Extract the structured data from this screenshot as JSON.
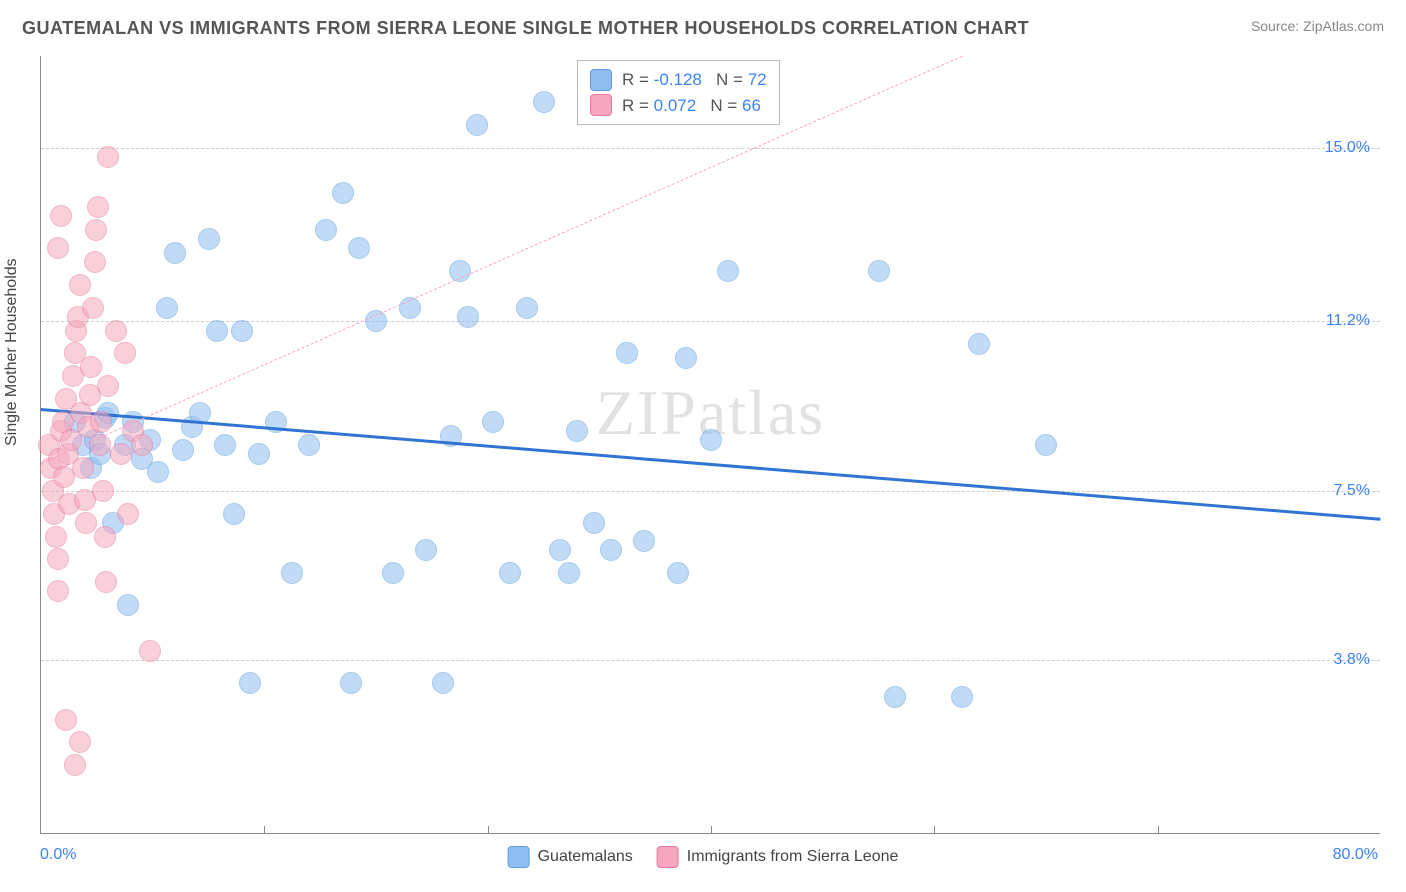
{
  "title": "GUATEMALAN VS IMMIGRANTS FROM SIERRA LEONE SINGLE MOTHER HOUSEHOLDS CORRELATION CHART",
  "source": "Source: ZipAtlas.com",
  "watermark": "ZIPatlas",
  "chart": {
    "type": "scatter",
    "xlim": [
      0,
      80
    ],
    "ylim": [
      0,
      17
    ],
    "x_ticks": [
      0,
      80
    ],
    "x_tick_labels": [
      "0.0%",
      "80.0%"
    ],
    "y_ticks": [
      3.8,
      7.5,
      11.2,
      15.0
    ],
    "y_tick_labels": [
      "3.8%",
      "7.5%",
      "11.2%",
      "15.0%"
    ],
    "x_minor_ticks": [
      13.3,
      26.7,
      40.0,
      53.3,
      66.7
    ],
    "y_label": "Single Mother Households",
    "background_color": "#ffffff",
    "grid_color": "#cccccc",
    "axis_color": "#888888",
    "label_color": "#3b82f6",
    "point_radius": 11,
    "point_opacity": 0.55,
    "series": [
      {
        "name": "Guatemalans",
        "fill": "#8fbff2",
        "stroke": "#5a9de0",
        "trend": {
          "x1": 0,
          "y1": 9.3,
          "x2": 80,
          "y2": 6.9,
          "color": "#2f74d0",
          "width": 3,
          "dash": false
        },
        "stats": {
          "R": "-0.128",
          "N": "72"
        },
        "points": [
          [
            2.0,
            9.0
          ],
          [
            2.5,
            8.5
          ],
          [
            3.0,
            8.0
          ],
          [
            3.2,
            8.6
          ],
          [
            3.5,
            8.3
          ],
          [
            3.8,
            9.1
          ],
          [
            4.3,
            6.8
          ],
          [
            4.0,
            9.2
          ],
          [
            5.0,
            8.5
          ],
          [
            5.2,
            5.0
          ],
          [
            5.5,
            9.0
          ],
          [
            6.0,
            8.2
          ],
          [
            6.5,
            8.6
          ],
          [
            7.0,
            7.9
          ],
          [
            7.5,
            11.5
          ],
          [
            8.0,
            12.7
          ],
          [
            8.5,
            8.4
          ],
          [
            9.0,
            8.9
          ],
          [
            9.5,
            9.2
          ],
          [
            10.0,
            13.0
          ],
          [
            10.5,
            11.0
          ],
          [
            11.0,
            8.5
          ],
          [
            11.5,
            7.0
          ],
          [
            12.0,
            11.0
          ],
          [
            12.5,
            3.3
          ],
          [
            13.0,
            8.3
          ],
          [
            14.0,
            9.0
          ],
          [
            15.0,
            5.7
          ],
          [
            16.0,
            8.5
          ],
          [
            17.0,
            13.2
          ],
          [
            18.0,
            14.0
          ],
          [
            18.5,
            3.3
          ],
          [
            19.0,
            12.8
          ],
          [
            20.0,
            11.2
          ],
          [
            21.0,
            5.7
          ],
          [
            22.0,
            11.5
          ],
          [
            23.0,
            6.2
          ],
          [
            24.0,
            3.3
          ],
          [
            24.5,
            8.7
          ],
          [
            25.0,
            12.3
          ],
          [
            25.5,
            11.3
          ],
          [
            26.0,
            15.5
          ],
          [
            27.0,
            9.0
          ],
          [
            28.0,
            5.7
          ],
          [
            29.0,
            11.5
          ],
          [
            30.0,
            16.0
          ],
          [
            31.0,
            6.2
          ],
          [
            31.5,
            5.7
          ],
          [
            32.0,
            8.8
          ],
          [
            33.0,
            6.8
          ],
          [
            34.0,
            6.2
          ],
          [
            35.0,
            10.5
          ],
          [
            36.0,
            6.4
          ],
          [
            38.0,
            5.7
          ],
          [
            38.5,
            10.4
          ],
          [
            40.0,
            8.6
          ],
          [
            41.0,
            12.3
          ],
          [
            50.0,
            12.3
          ],
          [
            51.0,
            3.0
          ],
          [
            55.0,
            3.0
          ],
          [
            56.0,
            10.7
          ],
          [
            60.0,
            8.5
          ]
        ]
      },
      {
        "name": "Immigrants from Sierra Leone",
        "fill": "#f5a8bd",
        "stroke": "#e878a0",
        "trend": {
          "x1": 0,
          "y1": 8.1,
          "x2": 55,
          "y2": 17.0,
          "color": "#f5a8bd",
          "width": 1.5,
          "dash": true
        },
        "stats": {
          "R": "0.072",
          "N": "66"
        },
        "points": [
          [
            0.5,
            8.5
          ],
          [
            0.6,
            8.0
          ],
          [
            0.7,
            7.5
          ],
          [
            0.8,
            7.0
          ],
          [
            0.9,
            6.5
          ],
          [
            1.0,
            6.0
          ],
          [
            1.0,
            5.3
          ],
          [
            1.1,
            8.2
          ],
          [
            1.2,
            8.8
          ],
          [
            1.3,
            9.0
          ],
          [
            1.4,
            7.8
          ],
          [
            1.5,
            9.5
          ],
          [
            1.6,
            8.3
          ],
          [
            1.7,
            7.2
          ],
          [
            1.8,
            8.6
          ],
          [
            1.9,
            10.0
          ],
          [
            2.0,
            10.5
          ],
          [
            2.1,
            11.0
          ],
          [
            2.2,
            11.3
          ],
          [
            2.3,
            12.0
          ],
          [
            2.4,
            9.2
          ],
          [
            2.5,
            8.0
          ],
          [
            2.6,
            7.3
          ],
          [
            2.7,
            6.8
          ],
          [
            2.8,
            8.9
          ],
          [
            2.9,
            9.6
          ],
          [
            3.0,
            10.2
          ],
          [
            3.1,
            11.5
          ],
          [
            3.2,
            12.5
          ],
          [
            3.3,
            13.2
          ],
          [
            3.4,
            13.7
          ],
          [
            3.5,
            8.5
          ],
          [
            3.6,
            9.0
          ],
          [
            3.7,
            7.5
          ],
          [
            3.8,
            6.5
          ],
          [
            3.9,
            5.5
          ],
          [
            4.0,
            9.8
          ],
          [
            4.5,
            11.0
          ],
          [
            4.8,
            8.3
          ],
          [
            5.0,
            10.5
          ],
          [
            5.2,
            7.0
          ],
          [
            5.5,
            8.8
          ],
          [
            6.0,
            8.5
          ],
          [
            4.0,
            14.8
          ],
          [
            1.5,
            2.5
          ],
          [
            2.0,
            1.5
          ],
          [
            2.3,
            2.0
          ],
          [
            6.5,
            4.0
          ],
          [
            1.0,
            12.8
          ],
          [
            1.2,
            13.5
          ]
        ]
      }
    ],
    "legend": {
      "items": [
        "Guatemalans",
        "Immigrants from Sierra Leone"
      ]
    },
    "stats_box": {
      "value_color": "#3b82f6",
      "label_color": "#555555"
    }
  }
}
